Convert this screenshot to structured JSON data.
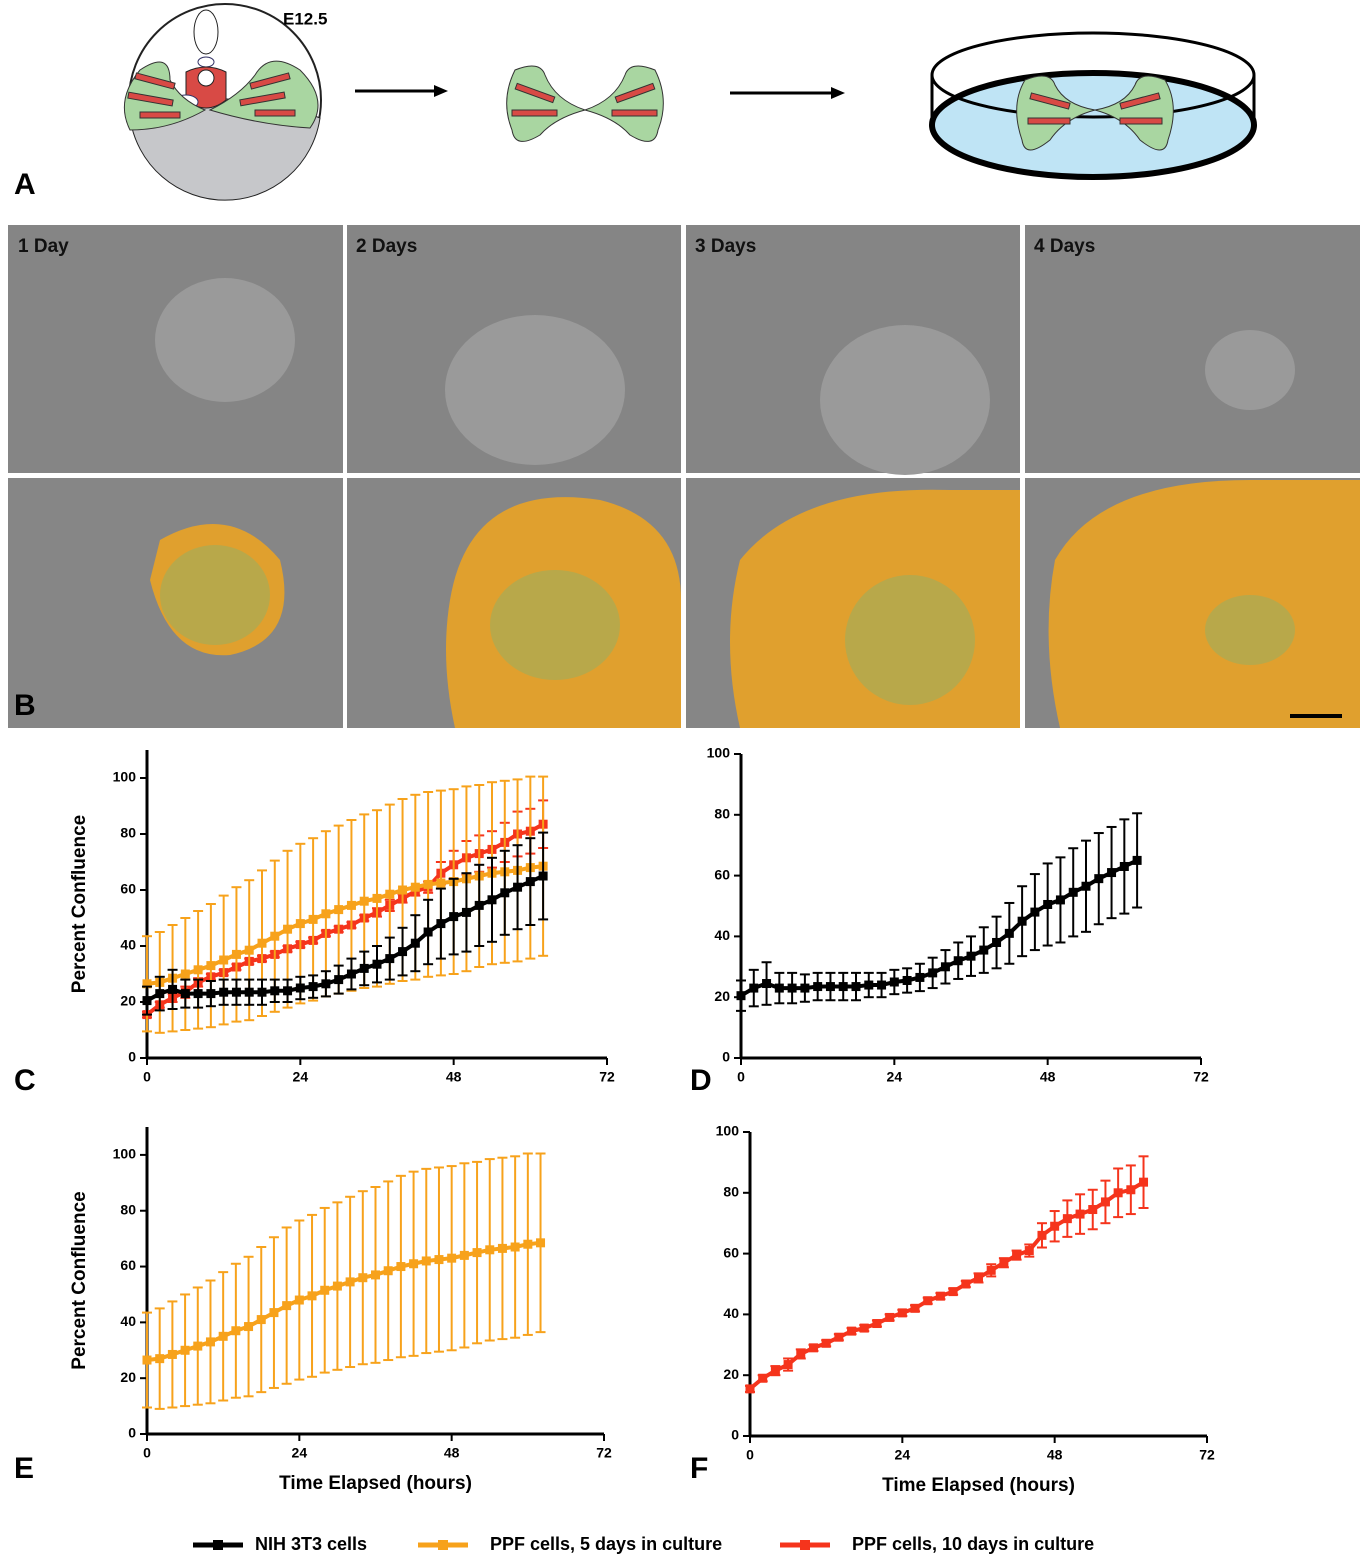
{
  "figure": {
    "schematic_label": "E12.5",
    "panel_labels": [
      "A",
      "B"
    ],
    "timepoints": [
      "1 Day",
      "2 Days",
      "3 Days",
      "4 Days"
    ]
  },
  "chart_data": [
    {
      "type": "line",
      "panel": "C",
      "y_label": "Percent Confluence",
      "x": [
        0,
        2,
        4,
        6,
        8,
        10,
        12,
        14,
        16,
        18,
        20,
        22,
        24,
        26,
        28,
        30,
        32,
        34,
        36,
        38,
        40,
        42,
        44,
        46,
        48,
        50,
        52,
        54,
        56,
        58,
        60,
        62
      ],
      "xlim": [
        0,
        72
      ],
      "xticks": [
        0,
        24,
        48,
        72
      ],
      "ylim": [
        0,
        110
      ],
      "yticks": [
        0,
        20,
        40,
        60,
        80,
        100
      ],
      "series": [
        {
          "name": "NIH 3T3 cells",
          "color": "#000000",
          "values": [
            20.5,
            23,
            24.5,
            23,
            23,
            23,
            23.5,
            23.5,
            23.5,
            23.5,
            24,
            24,
            25,
            25.5,
            26.5,
            28,
            30,
            32,
            33.5,
            35.5,
            38,
            41,
            45,
            48,
            50.5,
            52,
            54.5,
            56.5,
            59,
            61,
            63,
            65
          ],
          "errors": [
            5,
            6,
            7,
            5,
            5,
            4.5,
            4.5,
            4.5,
            4.5,
            4.5,
            4,
            4,
            4,
            4,
            4.5,
            5,
            5.5,
            6,
            6.5,
            7.5,
            8.5,
            10,
            11.5,
            12.5,
            13.5,
            14,
            14.5,
            15,
            15,
            15,
            15.5,
            15.5
          ]
        },
        {
          "name": "PPF cells, 5 days in culture",
          "color": "#f7a21b",
          "values": [
            26.5,
            27,
            28.5,
            30,
            31.5,
            33,
            35,
            37,
            38.5,
            41,
            43.5,
            46,
            48,
            49.5,
            51.5,
            53,
            54.5,
            56,
            57,
            58.5,
            60,
            61,
            62,
            62.5,
            63,
            64,
            65,
            66,
            66.5,
            67,
            68,
            68.5
          ],
          "errors": [
            17,
            18,
            19,
            20,
            21,
            22,
            23,
            24,
            25,
            26,
            27,
            28,
            28.5,
            29,
            29.5,
            30,
            30.5,
            31,
            31.5,
            32,
            32.5,
            33,
            33,
            33,
            33,
            33,
            32.5,
            32.5,
            32.5,
            32.5,
            32.5,
            32
          ]
        },
        {
          "name": "PPF cells, 10 days in culture",
          "color": "#f5341c",
          "values": [
            15.5,
            19,
            21.5,
            23.5,
            27,
            29,
            30.5,
            32.5,
            34.5,
            35.5,
            37,
            39,
            40.5,
            42,
            44.5,
            46,
            47.5,
            50,
            52,
            54.5,
            57,
            59.5,
            61,
            66,
            69,
            71.5,
            73,
            74.5,
            77,
            80,
            81,
            83.5
          ],
          "errors": [
            1,
            1,
            1.5,
            2,
            1.5,
            1,
            1,
            1,
            1,
            1,
            1,
            1,
            1,
            1,
            1,
            1,
            1,
            1,
            1.5,
            2,
            1.5,
            1.5,
            2,
            4,
            5,
            6,
            6.5,
            6.5,
            7,
            8,
            8,
            8.5
          ]
        }
      ]
    },
    {
      "type": "line",
      "panel": "D",
      "x": [
        0,
        2,
        4,
        6,
        8,
        10,
        12,
        14,
        16,
        18,
        20,
        22,
        24,
        26,
        28,
        30,
        32,
        34,
        36,
        38,
        40,
        42,
        44,
        46,
        48,
        50,
        52,
        54,
        56,
        58,
        60,
        62
      ],
      "xlim": [
        0,
        72
      ],
      "xticks": [
        0,
        24,
        48,
        72
      ],
      "ylim": [
        0,
        100
      ],
      "yticks": [
        0,
        20,
        40,
        60,
        80,
        100
      ],
      "series": [
        {
          "color": "#000000",
          "values": [
            20.5,
            23,
            24.5,
            23,
            23,
            23,
            23.5,
            23.5,
            23.5,
            23.5,
            24,
            24,
            25,
            25.5,
            26.5,
            28,
            30,
            32,
            33.5,
            35.5,
            38,
            41,
            45,
            48,
            50.5,
            52,
            54.5,
            56.5,
            59,
            61,
            63,
            65
          ],
          "errors": [
            5,
            6,
            7,
            5,
            5,
            4.5,
            4.5,
            4.5,
            4.5,
            4.5,
            4,
            4,
            4,
            4,
            4.5,
            5,
            5.5,
            6,
            6.5,
            7.5,
            8.5,
            10,
            11.5,
            12.5,
            13.5,
            14,
            14.5,
            15,
            15,
            15,
            15.5,
            15.5
          ]
        }
      ]
    },
    {
      "type": "line",
      "panel": "E",
      "y_label": "Percent Confluence",
      "x_label": "Time Elapsed (hours)",
      "x": [
        0,
        2,
        4,
        6,
        8,
        10,
        12,
        14,
        16,
        18,
        20,
        22,
        24,
        26,
        28,
        30,
        32,
        34,
        36,
        38,
        40,
        42,
        44,
        46,
        48,
        50,
        52,
        54,
        56,
        58,
        60,
        62
      ],
      "xlim": [
        0,
        72
      ],
      "xticks": [
        0,
        24,
        48,
        72
      ],
      "ylim": [
        0,
        110
      ],
      "yticks": [
        0,
        20,
        40,
        60,
        80,
        100
      ],
      "series": [
        {
          "color": "#f7a21b",
          "values": [
            26.5,
            27,
            28.5,
            30,
            31.5,
            33,
            35,
            37,
            38.5,
            41,
            43.5,
            46,
            48,
            49.5,
            51.5,
            53,
            54.5,
            56,
            57,
            58.5,
            60,
            61,
            62,
            62.5,
            63,
            64,
            65,
            66,
            66.5,
            67,
            68,
            68.5
          ],
          "errors": [
            17,
            18,
            19,
            20,
            21,
            22,
            23,
            24,
            25,
            26,
            27,
            28,
            28.5,
            29,
            29.5,
            30,
            30.5,
            31,
            31.5,
            32,
            32.5,
            33,
            33,
            33,
            33,
            33,
            32.5,
            32.5,
            32.5,
            32.5,
            32.5,
            32
          ]
        }
      ]
    },
    {
      "type": "line",
      "panel": "F",
      "x_label": "Time Elapsed (hours)",
      "x": [
        0,
        2,
        4,
        6,
        8,
        10,
        12,
        14,
        16,
        18,
        20,
        22,
        24,
        26,
        28,
        30,
        32,
        34,
        36,
        38,
        40,
        42,
        44,
        46,
        48,
        50,
        52,
        54,
        56,
        58,
        60,
        62
      ],
      "xlim": [
        0,
        72
      ],
      "xticks": [
        0,
        24,
        48,
        72
      ],
      "ylim": [
        0,
        100
      ],
      "yticks": [
        0,
        20,
        40,
        60,
        80,
        100
      ],
      "series": [
        {
          "color": "#f5341c",
          "values": [
            15.5,
            19,
            21.5,
            23.5,
            27,
            29,
            30.5,
            32.5,
            34.5,
            35.5,
            37,
            39,
            40.5,
            42,
            44.5,
            46,
            47.5,
            50,
            52,
            54.5,
            57,
            59.5,
            61,
            66,
            69,
            71.5,
            73,
            74.5,
            77,
            80,
            81,
            83.5
          ],
          "errors": [
            1,
            1,
            1.5,
            2,
            1.5,
            1,
            1,
            1,
            1,
            1,
            1,
            1,
            1,
            1,
            1,
            1,
            1,
            1,
            1.5,
            2,
            1.5,
            1.5,
            2,
            4,
            5,
            6,
            6.5,
            6.5,
            7,
            8,
            8,
            8.5
          ]
        }
      ]
    }
  ]
}
